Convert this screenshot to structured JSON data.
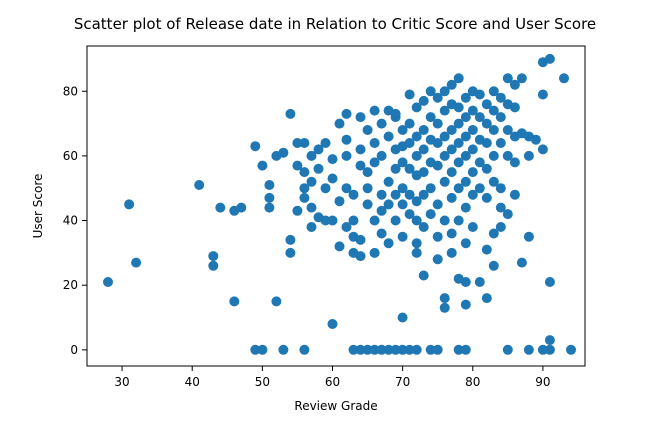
{
  "chart_data": {
    "type": "scatter",
    "title": "Scatter plot of Release date in Relation to Critic Score and User Score",
    "xlabel": "Review Grade",
    "ylabel": "User Score",
    "xlim": [
      25,
      96
    ],
    "ylim": [
      -5,
      94
    ],
    "xticks": [
      30,
      40,
      50,
      60,
      70,
      80,
      90
    ],
    "yticks": [
      0,
      20,
      40,
      60,
      80
    ],
    "grid": false,
    "color": "#1f77b4",
    "points": [
      [
        28,
        21
      ],
      [
        31,
        45
      ],
      [
        32,
        27
      ],
      [
        41,
        51
      ],
      [
        43,
        29
      ],
      [
        43,
        26
      ],
      [
        44,
        44
      ],
      [
        46,
        15
      ],
      [
        46,
        43
      ],
      [
        47,
        44
      ],
      [
        49,
        63
      ],
      [
        49,
        0
      ],
      [
        50,
        0
      ],
      [
        50,
        57
      ],
      [
        51,
        51
      ],
      [
        51,
        47
      ],
      [
        51,
        44
      ],
      [
        52,
        15
      ],
      [
        52,
        60
      ],
      [
        53,
        0
      ],
      [
        53,
        61
      ],
      [
        54,
        73
      ],
      [
        54,
        34
      ],
      [
        54,
        30
      ],
      [
        55,
        64
      ],
      [
        55,
        57
      ],
      [
        55,
        43
      ],
      [
        56,
        0
      ],
      [
        56,
        64
      ],
      [
        56,
        55
      ],
      [
        56,
        50
      ],
      [
        56,
        47
      ],
      [
        57,
        52
      ],
      [
        57,
        44
      ],
      [
        57,
        38
      ],
      [
        57,
        60
      ],
      [
        58,
        41
      ],
      [
        58,
        62
      ],
      [
        58,
        56
      ],
      [
        59,
        50
      ],
      [
        59,
        40
      ],
      [
        59,
        64
      ],
      [
        60,
        59
      ],
      [
        60,
        53
      ],
      [
        60,
        8
      ],
      [
        60,
        40
      ],
      [
        61,
        70
      ],
      [
        61,
        46
      ],
      [
        61,
        32
      ],
      [
        62,
        73
      ],
      [
        62,
        65
      ],
      [
        62,
        60
      ],
      [
        62,
        50
      ],
      [
        62,
        38
      ],
      [
        63,
        0
      ],
      [
        63,
        30
      ],
      [
        63,
        48
      ],
      [
        63,
        35
      ],
      [
        63,
        40
      ],
      [
        64,
        0
      ],
      [
        64,
        72
      ],
      [
        64,
        62
      ],
      [
        64,
        57
      ],
      [
        64,
        34
      ],
      [
        64,
        29
      ],
      [
        65,
        0
      ],
      [
        65,
        68
      ],
      [
        65,
        55
      ],
      [
        65,
        45
      ],
      [
        65,
        50
      ],
      [
        66,
        0
      ],
      [
        66,
        74
      ],
      [
        66,
        64
      ],
      [
        66,
        58
      ],
      [
        66,
        40
      ],
      [
        66,
        30
      ],
      [
        67,
        0
      ],
      [
        67,
        70
      ],
      [
        67,
        60
      ],
      [
        67,
        48
      ],
      [
        67,
        43
      ],
      [
        67,
        36
      ],
      [
        68,
        0
      ],
      [
        68,
        74
      ],
      [
        68,
        66
      ],
      [
        68,
        52
      ],
      [
        68,
        45
      ],
      [
        68,
        33
      ],
      [
        69,
        0
      ],
      [
        69,
        72
      ],
      [
        69,
        62
      ],
      [
        69,
        56
      ],
      [
        69,
        48
      ],
      [
        69,
        40
      ],
      [
        69,
        73
      ],
      [
        70,
        0
      ],
      [
        70,
        10
      ],
      [
        70,
        68
      ],
      [
        70,
        63
      ],
      [
        70,
        58
      ],
      [
        70,
        50
      ],
      [
        70,
        45
      ],
      [
        70,
        35
      ],
      [
        71,
        0
      ],
      [
        71,
        79
      ],
      [
        71,
        70
      ],
      [
        71,
        64
      ],
      [
        71,
        56
      ],
      [
        71,
        48
      ],
      [
        71,
        42
      ],
      [
        72,
        0
      ],
      [
        72,
        75
      ],
      [
        72,
        66
      ],
      [
        72,
        60
      ],
      [
        72,
        54
      ],
      [
        72,
        46
      ],
      [
        72,
        40
      ],
      [
        72,
        33
      ],
      [
        72,
        30
      ],
      [
        73,
        77
      ],
      [
        73,
        68
      ],
      [
        73,
        62
      ],
      [
        73,
        55
      ],
      [
        73,
        48
      ],
      [
        73,
        38
      ],
      [
        73,
        23
      ],
      [
        74,
        0
      ],
      [
        74,
        80
      ],
      [
        74,
        72
      ],
      [
        74,
        65
      ],
      [
        74,
        58
      ],
      [
        74,
        50
      ],
      [
        74,
        42
      ],
      [
        75,
        0
      ],
      [
        75,
        78
      ],
      [
        75,
        70
      ],
      [
        75,
        64
      ],
      [
        75,
        57
      ],
      [
        75,
        45
      ],
      [
        75,
        35
      ],
      [
        75,
        28
      ],
      [
        76,
        80
      ],
      [
        76,
        74
      ],
      [
        76,
        66
      ],
      [
        76,
        60
      ],
      [
        76,
        52
      ],
      [
        76,
        40
      ],
      [
        76,
        16
      ],
      [
        76,
        13
      ],
      [
        77,
        82
      ],
      [
        77,
        76
      ],
      [
        77,
        68
      ],
      [
        77,
        62
      ],
      [
        77,
        55
      ],
      [
        77,
        47
      ],
      [
        77,
        36
      ],
      [
        77,
        30
      ],
      [
        78,
        84
      ],
      [
        78,
        75
      ],
      [
        78,
        70
      ],
      [
        78,
        64
      ],
      [
        78,
        58
      ],
      [
        78,
        50
      ],
      [
        78,
        40
      ],
      [
        78,
        22
      ],
      [
        78,
        0
      ],
      [
        79,
        0
      ],
      [
        79,
        78
      ],
      [
        79,
        72
      ],
      [
        79,
        66
      ],
      [
        79,
        60
      ],
      [
        79,
        52
      ],
      [
        79,
        44
      ],
      [
        79,
        33
      ],
      [
        79,
        21
      ],
      [
        79,
        14
      ],
      [
        80,
        80
      ],
      [
        80,
        74
      ],
      [
        80,
        68
      ],
      [
        80,
        62
      ],
      [
        80,
        55
      ],
      [
        80,
        48
      ],
      [
        80,
        38
      ],
      [
        81,
        79
      ],
      [
        81,
        72
      ],
      [
        81,
        65
      ],
      [
        81,
        58
      ],
      [
        81,
        50
      ],
      [
        81,
        21
      ],
      [
        82,
        76
      ],
      [
        82,
        70
      ],
      [
        82,
        64
      ],
      [
        82,
        56
      ],
      [
        82,
        47
      ],
      [
        82,
        31
      ],
      [
        82,
        16
      ],
      [
        83,
        80
      ],
      [
        83,
        74
      ],
      [
        83,
        68
      ],
      [
        83,
        60
      ],
      [
        83,
        52
      ],
      [
        83,
        36
      ],
      [
        83,
        26
      ],
      [
        84,
        78
      ],
      [
        84,
        72
      ],
      [
        84,
        64
      ],
      [
        84,
        50
      ],
      [
        84,
        44
      ],
      [
        84,
        38
      ],
      [
        85,
        84
      ],
      [
        85,
        76
      ],
      [
        85,
        68
      ],
      [
        85,
        60
      ],
      [
        85,
        0
      ],
      [
        85,
        42
      ],
      [
        86,
        82
      ],
      [
        86,
        75
      ],
      [
        86,
        66
      ],
      [
        86,
        58
      ],
      [
        86,
        48
      ],
      [
        87,
        84
      ],
      [
        87,
        67
      ],
      [
        87,
        27
      ],
      [
        88,
        0
      ],
      [
        88,
        66
      ],
      [
        88,
        60
      ],
      [
        88,
        35
      ],
      [
        89,
        65
      ],
      [
        90,
        89
      ],
      [
        90,
        79
      ],
      [
        90,
        62
      ],
      [
        90,
        0
      ],
      [
        91,
        90
      ],
      [
        91,
        3
      ],
      [
        91,
        0
      ],
      [
        91,
        21
      ],
      [
        93,
        84
      ],
      [
        94,
        0
      ]
    ]
  }
}
